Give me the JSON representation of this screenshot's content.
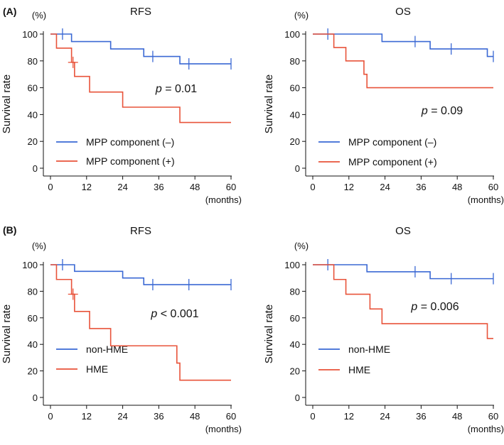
{
  "colors": {
    "blue": "#3a68d4",
    "red": "#e8533a",
    "axis": "#111111"
  },
  "panel_labels": [
    "(A)",
    "(B)"
  ],
  "chart_data": [
    {
      "type": "line",
      "panel": "(A)",
      "title": "RFS",
      "xlabel": "(months)",
      "ylabel": "Survival rate",
      "yunit": "(%)",
      "xlim": [
        0,
        60
      ],
      "ylim": [
        0,
        100
      ],
      "xticks": [
        0,
        12,
        24,
        36,
        48,
        60
      ],
      "yticks": [
        0,
        20,
        40,
        60,
        80,
        100
      ],
      "p_label": "p",
      "p_rest": " = 0.01",
      "series": [
        {
          "name": "MPP component (–)",
          "color": "#3a68d4",
          "steps": [
            [
              0,
              100
            ],
            [
              7,
              94.4
            ],
            [
              20,
              88.9
            ],
            [
              31,
              83.3
            ],
            [
              43,
              77.8
            ],
            [
              60,
              77.8
            ]
          ],
          "censored": [
            [
              4,
              100
            ],
            [
              34,
              83.3
            ],
            [
              46,
              77.8
            ],
            [
              60,
              77.8
            ]
          ]
        },
        {
          "name": "MPP component (+)",
          "color": "#e8533a",
          "steps": [
            [
              0,
              100
            ],
            [
              2,
              89.5
            ],
            [
              7,
              78.9
            ],
            [
              8,
              68.4
            ],
            [
              13,
              56.8
            ],
            [
              24,
              45.5
            ],
            [
              43,
              34.1
            ],
            [
              60,
              34.1
            ]
          ],
          "censored": [
            [
              7.5,
              78.9
            ]
          ]
        }
      ]
    },
    {
      "type": "line",
      "panel": "(A)",
      "title": "OS",
      "xlabel": "(months)",
      "ylabel": "Survival rate",
      "yunit": "(%)",
      "xlim": [
        0,
        60
      ],
      "ylim": [
        0,
        100
      ],
      "xticks": [
        0,
        12,
        24,
        36,
        48,
        60
      ],
      "yticks": [
        0,
        20,
        40,
        60,
        80,
        100
      ],
      "p_label": "p",
      "p_rest": " = 0.09",
      "series": [
        {
          "name": "MPP component (–)",
          "color": "#3a68d4",
          "steps": [
            [
              0,
              100
            ],
            [
              23,
              94.4
            ],
            [
              39,
              88.9
            ],
            [
              58,
              83.3
            ],
            [
              60,
              83.3
            ]
          ],
          "censored": [
            [
              5,
              100
            ],
            [
              34,
              94.4
            ],
            [
              46,
              88.9
            ],
            [
              60,
              83.3
            ]
          ]
        },
        {
          "name": "MPP component (+)",
          "color": "#e8533a",
          "steps": [
            [
              0,
              100
            ],
            [
              7,
              90
            ],
            [
              11,
              80
            ],
            [
              17,
              70
            ],
            [
              18,
              60
            ],
            [
              60,
              60
            ]
          ],
          "censored": []
        }
      ]
    },
    {
      "type": "line",
      "panel": "(B)",
      "title": "RFS",
      "xlabel": "(months)",
      "ylabel": "Survival rate",
      "yunit": "(%)",
      "xlim": [
        0,
        60
      ],
      "ylim": [
        0,
        100
      ],
      "xticks": [
        0,
        12,
        24,
        36,
        48,
        60
      ],
      "yticks": [
        0,
        20,
        40,
        60,
        80,
        100
      ],
      "p_label": "p",
      "p_rest": " < 0.001",
      "series": [
        {
          "name": "non-HME",
          "color": "#3a68d4",
          "steps": [
            [
              0,
              100
            ],
            [
              8,
              95
            ],
            [
              24,
              90
            ],
            [
              31,
              85
            ],
            [
              60,
              85
            ]
          ],
          "censored": [
            [
              4,
              100
            ],
            [
              34,
              85
            ],
            [
              46,
              85
            ],
            [
              60,
              85
            ]
          ]
        },
        {
          "name": "HME",
          "color": "#e8533a",
          "steps": [
            [
              0,
              100
            ],
            [
              2,
              88.9
            ],
            [
              7,
              77.8
            ],
            [
              8,
              64.8
            ],
            [
              13,
              51.9
            ],
            [
              20,
              38.9
            ],
            [
              42,
              25.9
            ],
            [
              43,
              13
            ],
            [
              60,
              13
            ]
          ],
          "censored": [
            [
              7.5,
              77.8
            ]
          ]
        }
      ]
    },
    {
      "type": "line",
      "panel": "(B)",
      "title": "OS",
      "xlabel": "(months)",
      "ylabel": "Survival rate",
      "yunit": "(%)",
      "xlim": [
        0,
        60
      ],
      "ylim": [
        0,
        100
      ],
      "xticks": [
        0,
        12,
        24,
        36,
        48,
        60
      ],
      "yticks": [
        0,
        20,
        40,
        60,
        80,
        100
      ],
      "p_label": "p",
      "p_rest": " = 0.006",
      "series": [
        {
          "name": "non-HME",
          "color": "#3a68d4",
          "steps": [
            [
              0,
              100
            ],
            [
              18,
              94.7
            ],
            [
              39,
              89.5
            ],
            [
              60,
              89.5
            ]
          ],
          "censored": [
            [
              5,
              100
            ],
            [
              34,
              94.7
            ],
            [
              46,
              89.5
            ],
            [
              60,
              89.5
            ]
          ]
        },
        {
          "name": "HME",
          "color": "#e8533a",
          "steps": [
            [
              0,
              100
            ],
            [
              7,
              88.9
            ],
            [
              11,
              77.8
            ],
            [
              19,
              66.7
            ],
            [
              23,
              55.6
            ],
            [
              58,
              55.6
            ],
            [
              58,
              44.4
            ],
            [
              60,
              44.4
            ]
          ],
          "censored": []
        }
      ]
    }
  ]
}
